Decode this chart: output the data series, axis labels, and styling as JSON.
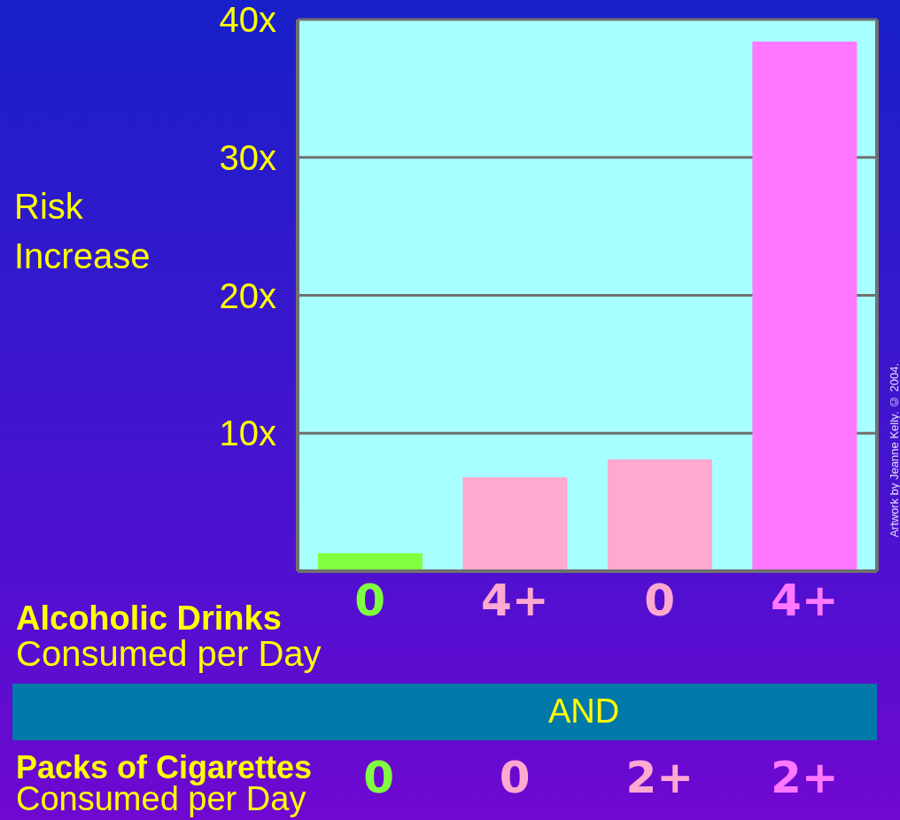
{
  "chart_data": {
    "type": "bar",
    "ylabel": "Risk Increase",
    "categories": [
      "0",
      "4+",
      "0",
      "4+"
    ],
    "values": [
      1.3,
      6.8,
      8.1,
      38.4
    ],
    "colors": [
      "#80ff40",
      "#ffa8d0",
      "#ffa8d0",
      "#ff78ff"
    ],
    "ylim": [
      0,
      40
    ],
    "yticks": [
      {
        "value": 10,
        "label": "10x"
      },
      {
        "value": 20,
        "label": "20x"
      },
      {
        "value": 30,
        "label": "30x"
      },
      {
        "value": 40,
        "label": "40x"
      }
    ],
    "grid": "y",
    "legend": false,
    "annotations": [
      "Alcoholic Drinks",
      "Consumed per Day",
      "AND",
      "Packs of Cigarettes",
      "Consumed per Day",
      "0",
      "0",
      "2+",
      "2+",
      "Artwork by Jeanne Kelly. © 2004."
    ]
  }
}
